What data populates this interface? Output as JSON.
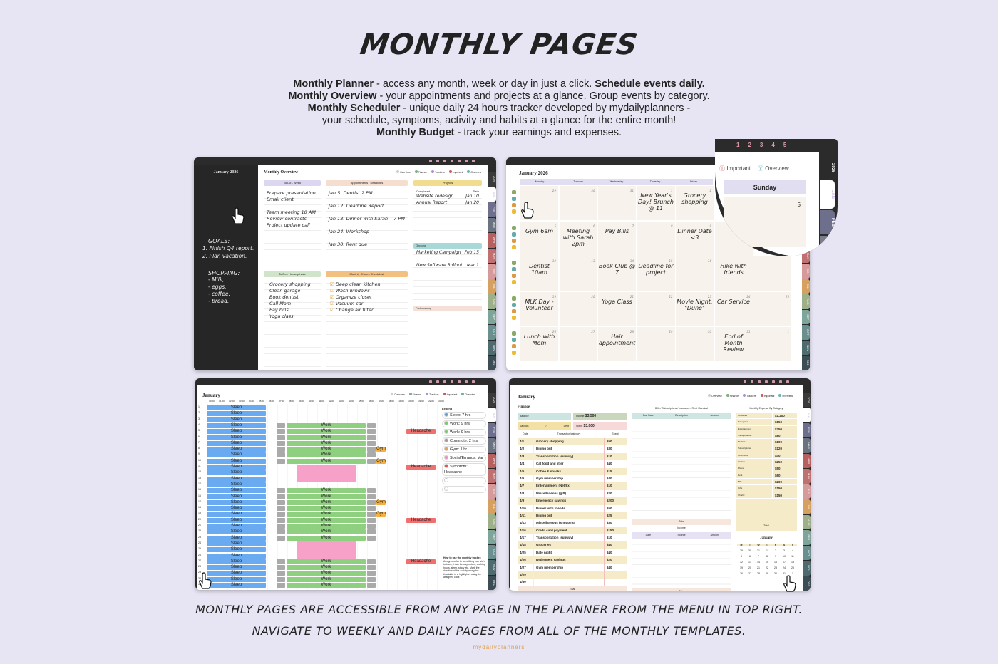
{
  "title": "MONTHLY PAGES",
  "desc": [
    {
      "b": "Monthly Planner",
      "t": " - access any month, week or day in just a click. ",
      "b2": "Schedule events daily."
    },
    {
      "b": "Monthly Overview",
      "t": " - your appointments and projects at a glance. Group events by category.",
      "b2": ""
    },
    {
      "b": "Monthly Scheduler",
      "t": " - unique daily 24 hours tracker developed by mydailyplanners -",
      "b2": ""
    },
    {
      "b": "",
      "t": "your schedule, symptoms, activity and habits at a glance for the entire month!",
      "b2": ""
    },
    {
      "b": "Monthly Budget",
      "t": " - track your earnings and expenses.",
      "b2": ""
    }
  ],
  "footer": [
    "MONTHLY PAGES ARE ACCESSIBLE FROM ANY PAGE IN THE PLANNER FROM THE MENU IN TOP RIGHT.",
    "NAVIGATE TO WEEKLY AND DAILY PAGES FROM ALL OF THE MONTHLY TEMPLATES."
  ],
  "brand": "mydailyplanners",
  "months": [
    "2025",
    "JAN",
    "FEB",
    "MAR",
    "APR",
    "MAY",
    "JUN",
    "JUL",
    "AUG",
    "SEP",
    "OCT",
    "NOV",
    "DEC"
  ],
  "month_colors": [
    "#3a3a3a",
    "#ffffff",
    "#6d6f8c",
    "#6b7280",
    "#b86060",
    "#c07070",
    "#d79a9a",
    "#d6a060",
    "#9db08a",
    "#7fa59a",
    "#6a8f8f",
    "#4f6b70",
    "#3d4d55"
  ],
  "nav": {
    "overview": "Overview",
    "finance": "Finance",
    "trackers": "Trackers",
    "important": "Important",
    "overview2": "Overview"
  },
  "overview": {
    "cal_title": "January 2026",
    "page_title": "Monthly Overview",
    "goals_title": "GOALS:",
    "goals": [
      "1. Finish Q4 report.",
      "2. Plan vacation."
    ],
    "shopping_title": "SHOPPING:",
    "shopping": [
      "- Milk,",
      "- eggs,",
      "- coffee,",
      "- bread."
    ],
    "todo_week": {
      "header": "To Do - Week",
      "items": [
        "Prepare presentation",
        "Email client",
        "",
        "Team meeting 10 AM",
        "Review contracts",
        "Project update call"
      ]
    },
    "appointments": {
      "header": "Appointments / Deadlines",
      "date_header": "Date",
      "items": [
        [
          "Jan 5: Dentist 2 PM",
          ""
        ],
        [
          "Jan 12: Deadline Report",
          ""
        ],
        [
          "Jan 18: Dinner with Sarah",
          "7 PM"
        ],
        [
          "Jan 24: Workshop",
          ""
        ],
        [
          "Jan 30: Rent due",
          ""
        ]
      ]
    },
    "projects": {
      "header": "Projects",
      "completed": "Completed",
      "due": "Date",
      "items": [
        [
          "Website redesign",
          "Jan 10"
        ],
        [
          "Annual Report",
          "Jan 20"
        ]
      ],
      "ongoing": "Ongoing",
      "ongoing_due": "Due",
      "ongoing_items": [
        [
          "Marketing Campaign",
          "Feb 15"
        ],
        [
          "New Software Rollout",
          "Mar 1"
        ]
      ],
      "forthcoming": "Forthcoming",
      "forthcoming_due": "Due"
    },
    "todo_home": {
      "header": "To Do - Home/private",
      "items": [
        "Grocery shopping",
        "Clean garage",
        "Book dentist",
        "Call Mom",
        "Pay bills",
        "Yoga class"
      ]
    },
    "chores": {
      "header": "Monthly Chores Check-List",
      "items": [
        "Deep clean kitchen",
        "Wash windows",
        "Organize closet",
        "Vacuum car",
        "Change air filter"
      ]
    }
  },
  "calendar": {
    "title": "January 2026",
    "days": [
      "Monday",
      "Tuesday",
      "Wednesday",
      "Thursday",
      "Friday"
    ],
    "cells": [
      [
        "29",
        ""
      ],
      [
        "30",
        ""
      ],
      [
        "31",
        ""
      ],
      [
        "1",
        "New Year's Day! Brunch @ 11"
      ],
      [
        "2",
        "Grocery shopping"
      ],
      [
        "5",
        "Gym 6am"
      ],
      [
        "6",
        "Meeting with Sarah 2pm"
      ],
      [
        "7",
        "Pay Bills"
      ],
      [
        "8",
        ""
      ],
      [
        "9",
        "Dinner Date <3"
      ],
      [
        "12",
        "Dentist 10am"
      ],
      [
        "13",
        ""
      ],
      [
        "14",
        "Book Club @ 7"
      ],
      [
        "15",
        "Deadline for project"
      ],
      [
        "16",
        ""
      ],
      [
        "19",
        "MLK Day - Volunteer"
      ],
      [
        "20",
        ""
      ],
      [
        "21",
        "Yoga Class"
      ],
      [
        "22",
        ""
      ],
      [
        "23",
        "Movie Night: \"Dune\""
      ],
      [
        "26",
        "Lunch with Mom"
      ],
      [
        "27",
        ""
      ],
      [
        "28",
        "Hair appointment"
      ],
      [
        "29",
        ""
      ],
      [
        "30",
        ""
      ]
    ],
    "sat": [
      [
        "",
        ""
      ],
      [
        "",
        "Hike with friends"
      ],
      [
        "24",
        "Car Service"
      ],
      [
        "31",
        "End of Month Review"
      ]
    ],
    "sun": [
      "",
      "",
      "",
      "25",
      "1"
    ],
    "zoom": {
      "important": "Important",
      "overview": "Overview",
      "day": "Sunday",
      "num": "5",
      "year": "2025",
      "tabs": [
        "JAN",
        "FEB",
        "MAR"
      ],
      "menu": [
        "1",
        "2",
        "3",
        "4",
        "5"
      ]
    }
  },
  "scheduler": {
    "title": "January",
    "sleep": "Sleep",
    "work": "Work",
    "gym": "Gym",
    "headache": "Headache",
    "hours": [
      "00:00",
      "01:00",
      "02:00",
      "03:00",
      "04:00",
      "05:00",
      "06:00",
      "07:00",
      "08:00",
      "09:00",
      "10:00",
      "11:00",
      "12:00",
      "13:00",
      "14:00",
      "15:00",
      "16:00",
      "17:00",
      "18:00",
      "19:00",
      "20:00",
      "21:00",
      "22:00",
      "23:00"
    ],
    "work_days": [
      4,
      5,
      6,
      7,
      8,
      9,
      10,
      15,
      16,
      17,
      18,
      19,
      20,
      21,
      22,
      23,
      27,
      28,
      29,
      30,
      31
    ],
    "gym_days": [
      8,
      10,
      17,
      19
    ],
    "headache_days": [
      5,
      11,
      20,
      27
    ],
    "social_days": [
      [
        11,
        13
      ],
      [
        24,
        26
      ]
    ],
    "legend_title": "Legend",
    "legend": [
      [
        "Sleep: 7 hrs",
        "#5aa0e8"
      ],
      [
        "Work: 9 hrs",
        "#7cc870"
      ],
      [
        "Work: 9 hrs",
        "#7cc870"
      ],
      [
        "Commute: 2 hrs",
        "#9a9a9a"
      ],
      [
        "Gym: 1 hr",
        "#f0a040"
      ],
      [
        "Social/Errands: Var",
        "#f090c0"
      ],
      [
        "Symptom: Headache",
        "#e85050"
      ],
      [
        "",
        ""
      ],
      [
        "",
        ""
      ]
    ],
    "howto_title": "How to use the monthly tracker:",
    "howto": "Assign a color to something you wish to track, it can be a symptom, working hours, sleep, study etc. Mark the duration of the activity along the timetable in a highlighter using the assigned color."
  },
  "budget": {
    "title": "January",
    "finance": "Finance",
    "balance": "Balance",
    "income": "Income",
    "income_val": "$3,500",
    "savings": "Savings",
    "debt": "Debt",
    "spent": "Spent",
    "spent_val": "$3,000",
    "tx_headers": [
      "Date",
      "Transaction/category",
      "Spent"
    ],
    "tx": [
      [
        "4/1",
        "Grocery shopping",
        "$50"
      ],
      [
        "4/2",
        "Dining out",
        "$30"
      ],
      [
        "4/3",
        "Transportation (subway)",
        "$10"
      ],
      [
        "4/4",
        "Cat food and litter",
        "$40"
      ],
      [
        "4/5",
        "Coffee & snacks",
        "$15"
      ],
      [
        "4/6",
        "Gym membership",
        "$40"
      ],
      [
        "4/7",
        "Entertainment (Netflix)",
        "$10"
      ],
      [
        "4/8",
        "Miscellaneous (gift)",
        "$20"
      ],
      [
        "4/9",
        "Emergency savings",
        "$200"
      ],
      [
        "4/10",
        "Dinner with friends",
        "$50"
      ],
      [
        "4/11",
        "Dining out",
        "$25"
      ],
      [
        "4/13",
        "Miscellaneous (shopping)",
        "$30"
      ],
      [
        "4/16",
        "Credit card payment",
        "$150"
      ],
      [
        "4/17",
        "Transportation (subway)",
        "$10"
      ],
      [
        "4/18",
        "Groceries",
        "$40"
      ],
      [
        "4/25",
        "Date night",
        "$40"
      ],
      [
        "4/26",
        "Retirement savings",
        "$20"
      ],
      [
        "4/27",
        "Gym membership",
        "$40"
      ],
      [
        "4/29",
        "",
        " "
      ],
      [
        "4/30",
        "",
        ""
      ]
    ],
    "total": "Total",
    "bills_title": "Bills / Subscriptions / Insurance / Rent / Medical",
    "bills_headers": [
      "Due Date",
      "Description",
      "Amount"
    ],
    "income_title": "Income",
    "income_headers": [
      "Date",
      "Source",
      "Amount"
    ],
    "cat_title": "Monthly Expense By Category",
    "cats": [
      [
        "Groceries",
        "$1,200"
      ],
      [
        "Dining Out",
        "$150"
      ],
      [
        "Entertainment",
        "$250"
      ],
      [
        "Transportation",
        "$80"
      ],
      [
        "Medical",
        "$100"
      ],
      [
        "Subscriptions",
        "$120"
      ],
      [
        "Cosmetics",
        "$40"
      ],
      [
        "Clothes",
        "$250"
      ],
      [
        "Phone",
        "$50"
      ],
      [
        "Rent",
        "$60"
      ],
      [
        "Bills",
        "$200"
      ],
      [
        "Gifts",
        "$150"
      ],
      [
        "Charity",
        "$150"
      ]
    ],
    "mini_title": "January",
    "mini_days": [
      "M",
      "T",
      "W",
      "T",
      "F",
      "S",
      "S"
    ],
    "mini": [
      "29",
      "30",
      "31",
      "1",
      "2",
      "3",
      "4",
      "5",
      "6",
      "7",
      "8",
      "9",
      "10",
      "11",
      "12",
      "13",
      "14",
      "15",
      "16",
      "17",
      "18",
      "19",
      "20",
      "21",
      "22",
      "23",
      "24",
      "25",
      "26",
      "27",
      "28",
      "29",
      "30",
      "31",
      "1"
    ]
  }
}
